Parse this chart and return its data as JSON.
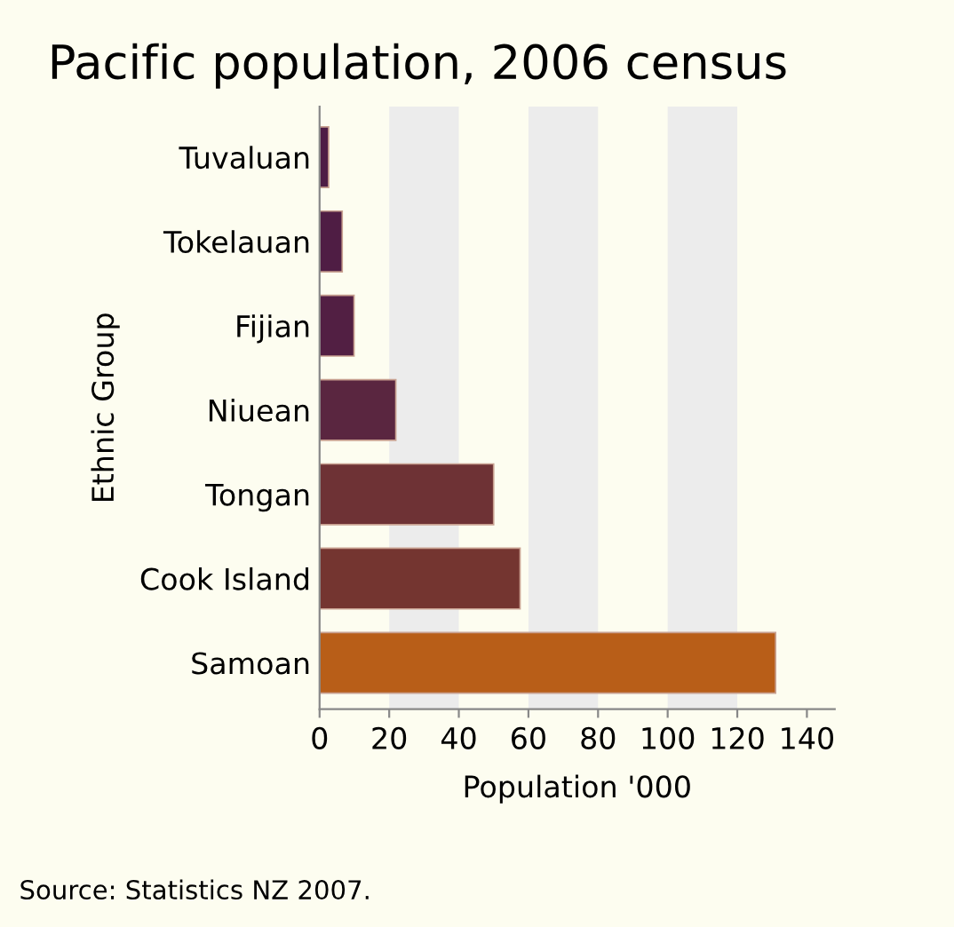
{
  "chart_data": {
    "type": "bar",
    "orientation": "horizontal",
    "title": "Pacific population, 2006 census",
    "xlabel": "Population '000",
    "ylabel": "Ethnic Group",
    "categories": [
      "Tuvaluan",
      "Tokelauan",
      "Fijian",
      "Niuean",
      "Tongan",
      "Cook Island",
      "Samoan"
    ],
    "values": [
      2.6,
      6.5,
      9.9,
      21.9,
      50,
      57.6,
      131
    ],
    "colors": [
      "#4d1c45",
      "#4f1d44",
      "#521f43",
      "#5a2640",
      "#6e3235",
      "#743530",
      "#b85e18"
    ],
    "xlim": [
      0,
      148
    ],
    "xticks": [
      0,
      20,
      40,
      60,
      80,
      100,
      120,
      140
    ],
    "bands": [
      {
        "axis": "x",
        "from": 20,
        "to": 40,
        "color": "#ececec"
      },
      {
        "axis": "x",
        "from": 60,
        "to": 80,
        "color": "#ececec"
      },
      {
        "axis": "x",
        "from": 100,
        "to": 120,
        "color": "#ececec"
      }
    ],
    "grid": false,
    "legend": false,
    "annotations": [
      "Source: Statistics NZ 2007."
    ]
  }
}
